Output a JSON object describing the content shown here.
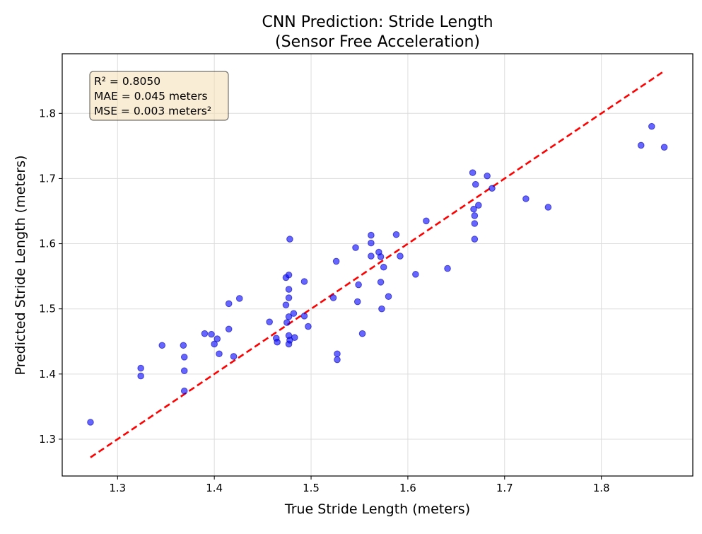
{
  "chart_data": {
    "type": "scatter",
    "title": "CNN Prediction: Stride Length",
    "subtitle": "(Sensor Free Acceleration)",
    "xlabel": "True Stride Length (meters)",
    "ylabel": "Predicted Stride Length (meters)",
    "xlim": [
      1.2428,
      1.8945
    ],
    "ylim": [
      1.2435,
      1.8915
    ],
    "xticks": [
      "1.3",
      "1.4",
      "1.5",
      "1.6",
      "1.7",
      "1.8"
    ],
    "yticks": [
      "1.3",
      "1.4",
      "1.5",
      "1.6",
      "1.7",
      "1.8"
    ],
    "grid": true,
    "point_color": "#0000ff",
    "reference_line": {
      "color": "#ff0000",
      "style": "dashed",
      "x": [
        1.272,
        1.865
      ],
      "y": [
        1.272,
        1.865
      ]
    },
    "stats": [
      "R² = 0.8050",
      "MAE = 0.045 meters",
      "MSE = 0.003 meters²"
    ],
    "points": [
      [
        1.272,
        1.326
      ],
      [
        1.324,
        1.409
      ],
      [
        1.324,
        1.397
      ],
      [
        1.346,
        1.444
      ],
      [
        1.368,
        1.444
      ],
      [
        1.369,
        1.426
      ],
      [
        1.369,
        1.405
      ],
      [
        1.369,
        1.374
      ],
      [
        1.39,
        1.462
      ],
      [
        1.397,
        1.461
      ],
      [
        1.4,
        1.446
      ],
      [
        1.403,
        1.454
      ],
      [
        1.405,
        1.431
      ],
      [
        1.415,
        1.469
      ],
      [
        1.415,
        1.508
      ],
      [
        1.42,
        1.427
      ],
      [
        1.426,
        1.516
      ],
      [
        1.457,
        1.48
      ],
      [
        1.464,
        1.455
      ],
      [
        1.465,
        1.449
      ],
      [
        1.474,
        1.506
      ],
      [
        1.474,
        1.548
      ],
      [
        1.475,
        1.479
      ],
      [
        1.477,
        1.446
      ],
      [
        1.477,
        1.459
      ],
      [
        1.477,
        1.488
      ],
      [
        1.477,
        1.517
      ],
      [
        1.477,
        1.53
      ],
      [
        1.477,
        1.552
      ],
      [
        1.478,
        1.607
      ],
      [
        1.478,
        1.452
      ],
      [
        1.482,
        1.493
      ],
      [
        1.483,
        1.456
      ],
      [
        1.493,
        1.489
      ],
      [
        1.493,
        1.542
      ],
      [
        1.497,
        1.473
      ],
      [
        1.523,
        1.517
      ],
      [
        1.526,
        1.573
      ],
      [
        1.527,
        1.431
      ],
      [
        1.527,
        1.422
      ],
      [
        1.546,
        1.594
      ],
      [
        1.548,
        1.511
      ],
      [
        1.549,
        1.537
      ],
      [
        1.553,
        1.462
      ],
      [
        1.562,
        1.613
      ],
      [
        1.562,
        1.601
      ],
      [
        1.562,
        1.581
      ],
      [
        1.57,
        1.587
      ],
      [
        1.572,
        1.58
      ],
      [
        1.572,
        1.541
      ],
      [
        1.573,
        1.5
      ],
      [
        1.575,
        1.564
      ],
      [
        1.58,
        1.519
      ],
      [
        1.588,
        1.614
      ],
      [
        1.592,
        1.581
      ],
      [
        1.608,
        1.553
      ],
      [
        1.619,
        1.635
      ],
      [
        1.641,
        1.562
      ],
      [
        1.667,
        1.709
      ],
      [
        1.668,
        1.653
      ],
      [
        1.669,
        1.643
      ],
      [
        1.669,
        1.631
      ],
      [
        1.669,
        1.607
      ],
      [
        1.67,
        1.691
      ],
      [
        1.673,
        1.659
      ],
      [
        1.682,
        1.704
      ],
      [
        1.687,
        1.685
      ],
      [
        1.722,
        1.669
      ],
      [
        1.745,
        1.656
      ],
      [
        1.841,
        1.751
      ],
      [
        1.852,
        1.78
      ],
      [
        1.865,
        1.748
      ]
    ]
  }
}
